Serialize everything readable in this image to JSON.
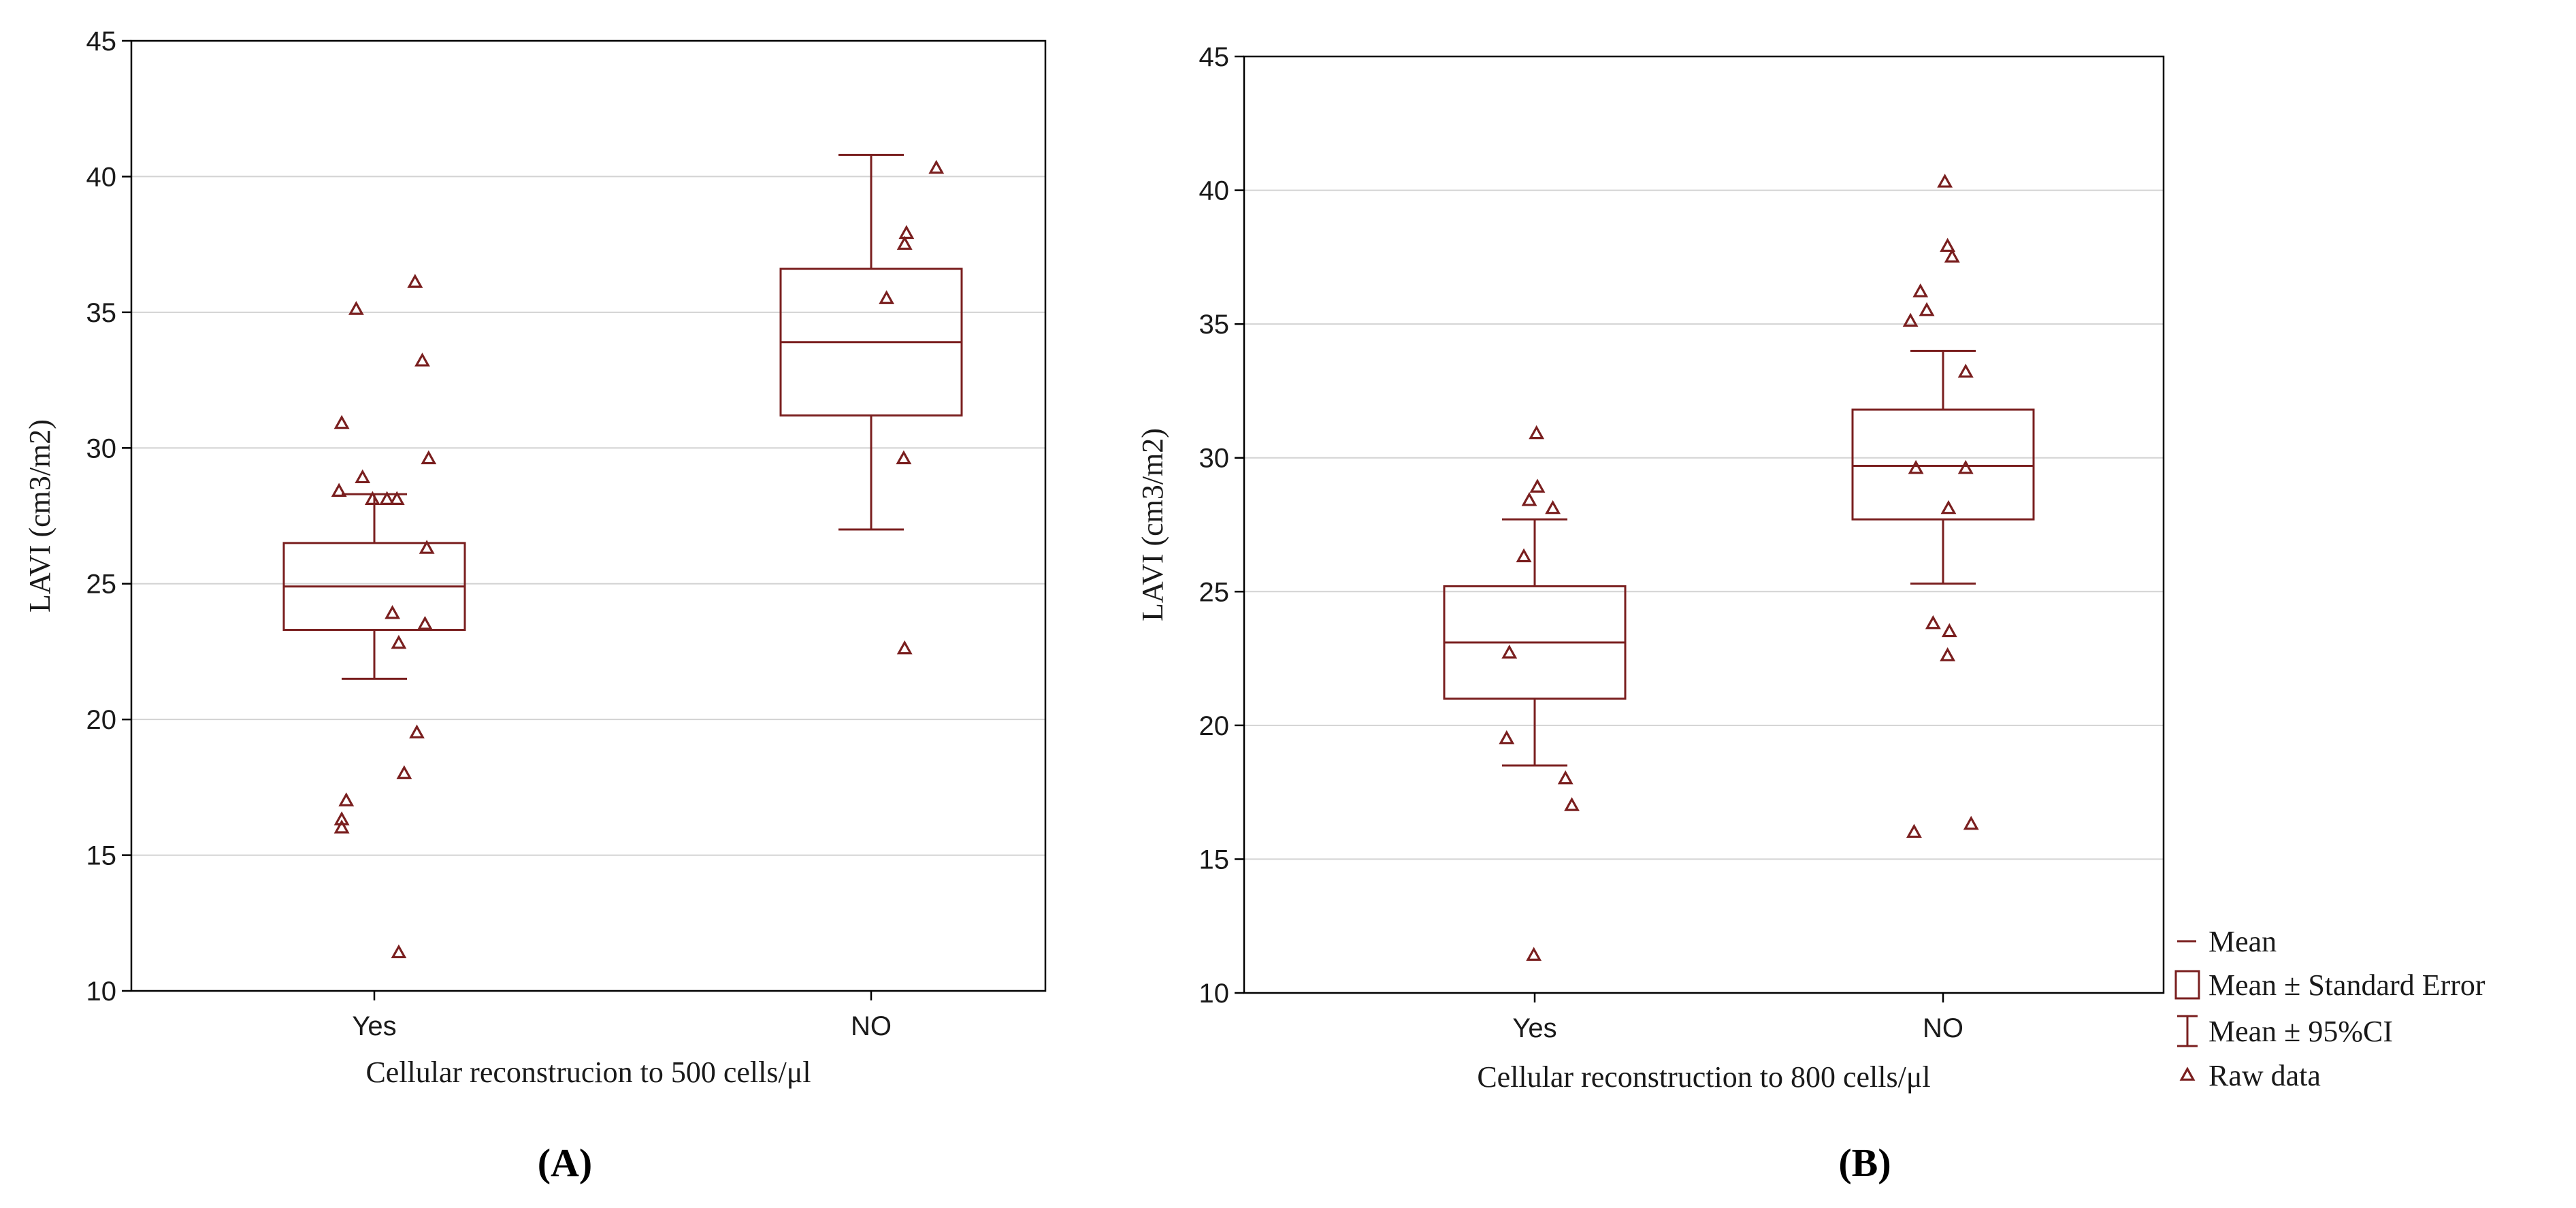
{
  "colors": {
    "series": "#7a1f1f",
    "grid": "#d3d3d3",
    "axis": "#000000"
  },
  "legend": {
    "items": [
      {
        "key": "mean",
        "label": "Mean"
      },
      {
        "key": "se",
        "label": "Mean ± Standard Error"
      },
      {
        "key": "ci",
        "label": "Mean ± 95%CI"
      },
      {
        "key": "raw",
        "label": "Raw data"
      }
    ]
  },
  "chart_data": [
    {
      "type": "box",
      "panel_letter": "A",
      "panel_label": "(A)",
      "xlabel": "Cellular reconstrucion to 500 cells/μl",
      "ylabel": "LAVI (cm3/m2)",
      "ylim": [
        10,
        45
      ],
      "yticks": [
        10,
        15,
        20,
        25,
        30,
        35,
        40,
        45
      ],
      "grid": true,
      "categories": [
        "Yes",
        "NO"
      ],
      "groups": [
        {
          "name": "Yes",
          "mean": 24.9,
          "se_low": 23.3,
          "se_high": 26.5,
          "ci_low": 21.5,
          "ci_high": 28.3,
          "raw": [
            {
              "x": 0.45,
              "y": 36.1
            },
            {
              "x": -0.2,
              "y": 35.1
            },
            {
              "x": 0.53,
              "y": 33.2
            },
            {
              "x": -0.36,
              "y": 30.9
            },
            {
              "x": 0.6,
              "y": 29.6
            },
            {
              "x": -0.13,
              "y": 28.9
            },
            {
              "x": -0.39,
              "y": 28.4
            },
            {
              "x": -0.02,
              "y": 28.1
            },
            {
              "x": 0.14,
              "y": 28.1
            },
            {
              "x": 0.25,
              "y": 28.1
            },
            {
              "x": 0.58,
              "y": 26.3
            },
            {
              "x": 0.2,
              "y": 23.9
            },
            {
              "x": 0.56,
              "y": 23.5
            },
            {
              "x": 0.27,
              "y": 22.8
            },
            {
              "x": 0.47,
              "y": 19.5
            },
            {
              "x": 0.33,
              "y": 18.0
            },
            {
              "x": -0.31,
              "y": 17.0
            },
            {
              "x": -0.36,
              "y": 16.3
            },
            {
              "x": -0.36,
              "y": 16.0
            },
            {
              "x": 0.27,
              "y": 11.4
            }
          ]
        },
        {
          "name": "NO",
          "mean": 33.9,
          "se_low": 31.2,
          "se_high": 36.6,
          "ci_low": 27.0,
          "ci_high": 40.8,
          "raw": [
            {
              "x": 0.72,
              "y": 40.3
            },
            {
              "x": 0.39,
              "y": 37.9
            },
            {
              "x": 0.37,
              "y": 37.5
            },
            {
              "x": 0.17,
              "y": 35.5
            },
            {
              "x": 0.36,
              "y": 29.6
            },
            {
              "x": 0.37,
              "y": 22.6
            }
          ]
        }
      ]
    },
    {
      "type": "box",
      "panel_letter": "B",
      "panel_label": "(B)",
      "xlabel": "Cellular reconstruction to 800 cells/μl",
      "ylabel": "LAVI (cm3/m2)",
      "ylim": [
        10,
        45
      ],
      "yticks": [
        10,
        15,
        20,
        25,
        30,
        35,
        40,
        45
      ],
      "grid": true,
      "categories": [
        "Yes",
        "NO"
      ],
      "groups": [
        {
          "name": "Yes",
          "mean": 23.1,
          "se_low": 21.0,
          "se_high": 25.2,
          "ci_low": 18.5,
          "ci_high": 27.7,
          "raw": [
            {
              "x": 0.02,
              "y": 30.9
            },
            {
              "x": 0.03,
              "y": 28.9
            },
            {
              "x": -0.06,
              "y": 28.4
            },
            {
              "x": 0.2,
              "y": 28.1
            },
            {
              "x": -0.12,
              "y": 26.3
            },
            {
              "x": -0.28,
              "y": 22.7
            },
            {
              "x": -0.31,
              "y": 19.5
            },
            {
              "x": 0.34,
              "y": 18.0
            },
            {
              "x": 0.41,
              "y": 17.0
            },
            {
              "x": -0.01,
              "y": 11.4
            }
          ]
        },
        {
          "name": "NO",
          "mean": 29.7,
          "se_low": 27.7,
          "se_high": 31.8,
          "ci_low": 25.3,
          "ci_high": 34.0,
          "raw": [
            {
              "x": 0.02,
              "y": 40.3
            },
            {
              "x": 0.05,
              "y": 37.9
            },
            {
              "x": 0.1,
              "y": 37.5
            },
            {
              "x": -0.25,
              "y": 36.2
            },
            {
              "x": -0.18,
              "y": 35.5
            },
            {
              "x": -0.36,
              "y": 35.1
            },
            {
              "x": 0.25,
              "y": 33.2
            },
            {
              "x": -0.3,
              "y": 29.6
            },
            {
              "x": 0.25,
              "y": 29.6
            },
            {
              "x": 0.06,
              "y": 28.1
            },
            {
              "x": -0.11,
              "y": 23.8
            },
            {
              "x": 0.07,
              "y": 23.5
            },
            {
              "x": 0.05,
              "y": 22.6
            },
            {
              "x": -0.32,
              "y": 16.0
            },
            {
              "x": 0.31,
              "y": 16.3
            }
          ]
        }
      ]
    }
  ]
}
